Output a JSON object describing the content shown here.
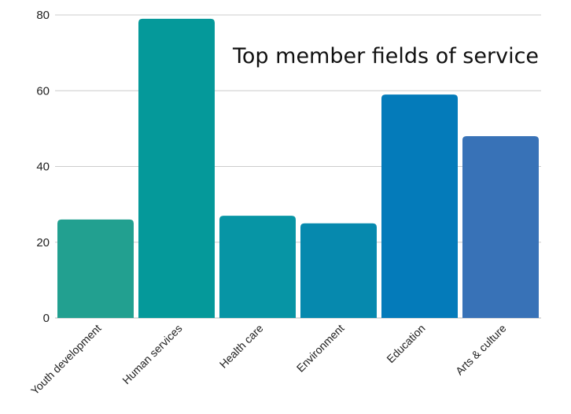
{
  "chart_data": {
    "type": "bar",
    "title": "Top  member fields of service",
    "xlabel": "",
    "ylabel": "",
    "categories": [
      "Youth development",
      "Human services",
      "Health care",
      "Environment",
      "Education",
      "Arts & culture"
    ],
    "values": [
      26,
      79,
      27,
      25,
      59,
      48
    ],
    "colors": [
      "#22a090",
      "#05999a",
      "#0795a5",
      "#0689ae",
      "#047bba",
      "#3872b7"
    ],
    "ylim": [
      0,
      80
    ],
    "yticks": [
      0,
      20,
      40,
      60,
      80
    ],
    "grid": true,
    "legend": "none"
  }
}
